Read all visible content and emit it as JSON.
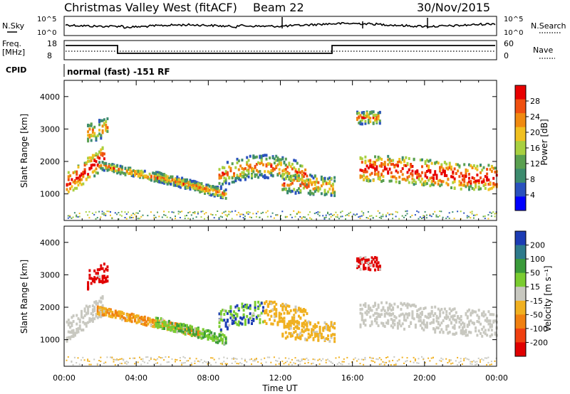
{
  "header": {
    "title": "Christmas Valley West (fitACF)",
    "beam": "Beam 22",
    "date": "30/Nov/2015"
  },
  "top_panels": {
    "nsky_label": "N.Sky",
    "nsearch_label": "N.Search",
    "noise_ticks": [
      "10^5",
      "10^0"
    ],
    "freq_label_line1": "Freq.",
    "freq_label_line2": "[MHz]",
    "freq_ticks": [
      "18",
      "8"
    ],
    "nave_label": "Nave",
    "nave_ticks": [
      "60",
      "0"
    ],
    "cpid_label": "CPID",
    "cpid_text": "normal (fast) -151 RF"
  },
  "chart_data": [
    {
      "type": "heatmap",
      "name": "power",
      "ylabel": "Slant Range [km]",
      "yticks": [
        "1000",
        "2000",
        "3000",
        "4000"
      ],
      "ylim": [
        180,
        4500
      ],
      "xlim": [
        0,
        24
      ],
      "colorbar": {
        "label": "Power [dB]",
        "ticks": [
          "4",
          "8",
          "12",
          "16",
          "20",
          "24",
          "28"
        ],
        "range": [
          0,
          32
        ],
        "colors": [
          "#0000ff",
          "#2a52be",
          "#3c8b6e",
          "#5aa050",
          "#a8d040",
          "#f0c020",
          "#f08a10",
          "#f05010",
          "#e80000"
        ]
      }
    },
    {
      "type": "heatmap",
      "name": "velocity",
      "ylabel": "Slant Range [km]",
      "yticks": [
        "1000",
        "2000",
        "3000",
        "4000"
      ],
      "ylim": [
        180,
        4500
      ],
      "xlim": [
        0,
        24
      ],
      "colorbar": {
        "label": "Velocity [m s⁻¹]",
        "ticks": [
          "200",
          "100",
          "50",
          "15",
          "-15",
          "-50",
          "-100",
          "-200"
        ],
        "colors": [
          "#1c3cb4",
          "#2e7a8c",
          "#3a9a3a",
          "#7acc30",
          "#c8c8c0",
          "#f0b020",
          "#f08010",
          "#f04010",
          "#e00000"
        ]
      }
    }
  ],
  "xaxis": {
    "label": "Time UT",
    "ticks": [
      "00:00",
      "04:00",
      "08:00",
      "12:00",
      "16:00",
      "20:00",
      "00:00"
    ]
  }
}
